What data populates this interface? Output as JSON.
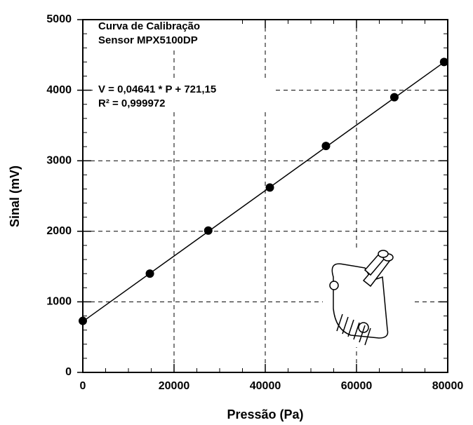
{
  "chart_data": {
    "type": "scatter",
    "annotations": [
      "Curva de Calibração",
      "Sensor MPX5100DP",
      "V = 0,04641 * P + 721,15",
      "R² = 0,999972"
    ],
    "x_label": "Pressão (Pa)",
    "y_label": "Sinal (mV)",
    "x": [
      0,
      14700,
      27500,
      41000,
      53300,
      68300,
      79200
    ],
    "values": [
      730,
      1400,
      2010,
      2620,
      3210,
      3900,
      4400
    ],
    "color": "#000000",
    "fit": {
      "slope": 0.04641,
      "intercept": 721.15
    },
    "xlim": [
      0,
      80000
    ],
    "xticks": [
      0,
      20000,
      40000,
      60000,
      80000
    ],
    "ylim": [
      0,
      5000
    ],
    "yticks": [
      0,
      1000,
      2000,
      3000,
      4000,
      5000
    ],
    "grid": true
  }
}
